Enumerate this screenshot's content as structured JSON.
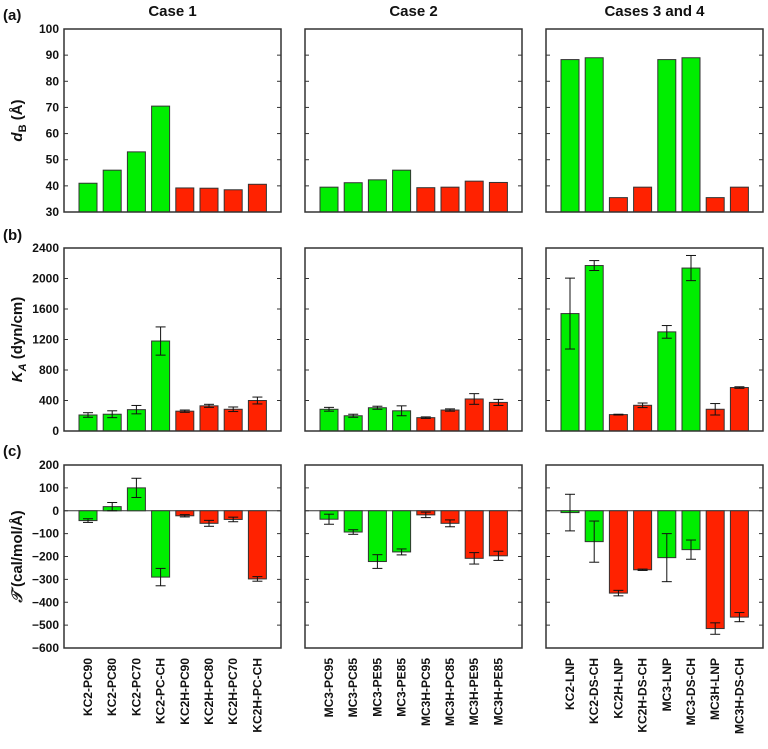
{
  "colors": {
    "green": "#00ee00",
    "red": "#ff2200",
    "axis": "#333333"
  },
  "row_labels": [
    "(a)",
    "(b)",
    "(c)"
  ],
  "column_titles": [
    "Case 1",
    "Case 2",
    "Cases 3 and 4"
  ],
  "chart_data": [
    {
      "type": "bar",
      "row": "a",
      "ylabel": "d_B (Å)",
      "ylabel_main": "d",
      "ylabel_sub": "B",
      "ylabel_unit": " (Å)",
      "ylim": [
        30,
        100
      ],
      "yticks": [
        30,
        40,
        50,
        60,
        70,
        80,
        90,
        100
      ],
      "panels": [
        {
          "title": "Case 1",
          "categories": [
            "KC2-PC90",
            "KC2-PC80",
            "KC2-PC70",
            "KC2-PC-CH",
            "KC2H-PC90",
            "KC2H-PC80",
            "KC2H-PC70",
            "KC2H-PC-CH"
          ],
          "values": [
            41,
            46,
            53,
            70.5,
            39.2,
            39.1,
            38.5,
            40.6
          ],
          "errors": [
            0,
            0,
            0,
            0,
            0,
            0,
            0,
            0
          ],
          "colors": [
            "green",
            "green",
            "green",
            "green",
            "red",
            "red",
            "red",
            "red"
          ]
        },
        {
          "title": "Case 2",
          "categories": [
            "MC3-PC95",
            "MC3-PC85",
            "MC3-PE95",
            "MC3-PE85",
            "MC3H-PC95",
            "MC3H-PC85",
            "MC3H-PE95",
            "MC3H-PE85"
          ],
          "values": [
            39.5,
            41.2,
            42.3,
            46,
            39.3,
            39.5,
            41.8,
            41.3
          ],
          "errors": [
            0,
            0,
            0,
            0,
            0,
            0,
            0,
            0
          ],
          "colors": [
            "green",
            "green",
            "green",
            "green",
            "red",
            "red",
            "red",
            "red"
          ]
        },
        {
          "title": "Cases 3 and 4",
          "categories": [
            "KC2-LNP",
            "KC2-DS-CH",
            "KC2H-LNP",
            "KC2H-DS-CH",
            "MC3-LNP",
            "MC3-DS-CH",
            "MC3H-LNP",
            "MC3H-DS-CH"
          ],
          "values": [
            88.3,
            89,
            35.5,
            39.5,
            88.3,
            89,
            35.5,
            39.5
          ],
          "errors": [
            0,
            0,
            0,
            0,
            0,
            0,
            0,
            0
          ],
          "colors": [
            "green",
            "green",
            "red",
            "red",
            "green",
            "green",
            "red",
            "red"
          ]
        }
      ]
    },
    {
      "type": "bar",
      "row": "b",
      "ylabel": "K_A (dyn/cm)",
      "ylabel_main": "K",
      "ylabel_sub": "A",
      "ylabel_unit": " (dyn/cm)",
      "ylim": [
        0,
        2400
      ],
      "yticks": [
        0,
        400,
        800,
        1200,
        1600,
        2000,
        2400
      ],
      "panels": [
        {
          "title": "Case 1",
          "values": [
            210,
            220,
            280,
            1180,
            260,
            330,
            285,
            400
          ],
          "errors": [
            30,
            45,
            55,
            185,
            15,
            20,
            30,
            45
          ],
          "colors": [
            "green",
            "green",
            "green",
            "green",
            "red",
            "red",
            "red",
            "red"
          ]
        },
        {
          "title": "Case 2",
          "values": [
            285,
            200,
            305,
            265,
            175,
            275,
            420,
            375
          ],
          "errors": [
            25,
            20,
            20,
            65,
            10,
            15,
            70,
            40
          ],
          "colors": [
            "green",
            "green",
            "green",
            "green",
            "red",
            "red",
            "red",
            "red"
          ]
        },
        {
          "title": "Cases 3 and 4",
          "values": [
            1540,
            2170,
            215,
            337,
            1300,
            2137,
            285,
            570
          ],
          "errors": [
            465,
            65,
            5,
            30,
            83,
            165,
            75,
            10
          ],
          "colors": [
            "green",
            "green",
            "red",
            "red",
            "green",
            "green",
            "red",
            "red"
          ]
        }
      ]
    },
    {
      "type": "bar",
      "row": "c",
      "ylabel": "T (cal/mol/Å)",
      "ylabel_main": "𝒯",
      "ylabel_sub": "",
      "ylabel_unit": " (cal/mol/Å)",
      "ylim": [
        -600,
        200
      ],
      "yticks": [
        -600,
        -500,
        -400,
        -300,
        -200,
        -100,
        0,
        100,
        200
      ],
      "panels": [
        {
          "title": "Case 1",
          "values": [
            -43,
            18,
            100,
            -290,
            -22,
            -55,
            -38,
            -298
          ],
          "errors": [
            8,
            18,
            42,
            38,
            5,
            13,
            10,
            10
          ],
          "colors": [
            "green",
            "green",
            "green",
            "green",
            "red",
            "red",
            "red",
            "red"
          ]
        },
        {
          "title": "Case 2",
          "values": [
            -37,
            -93,
            -222,
            -180,
            -18,
            -55,
            -208,
            -197
          ],
          "errors": [
            22,
            10,
            30,
            13,
            12,
            15,
            25,
            20
          ],
          "colors": [
            "green",
            "green",
            "green",
            "green",
            "red",
            "red",
            "red",
            "red"
          ]
        },
        {
          "title": "Cases 3 and 4",
          "values": [
            -8,
            -135,
            -360,
            -258,
            -205,
            -170,
            -515,
            -465
          ],
          "errors": [
            80,
            90,
            12,
            3,
            105,
            42,
            25,
            20
          ],
          "colors": [
            "green",
            "green",
            "red",
            "red",
            "green",
            "green",
            "red",
            "red"
          ]
        }
      ]
    }
  ]
}
